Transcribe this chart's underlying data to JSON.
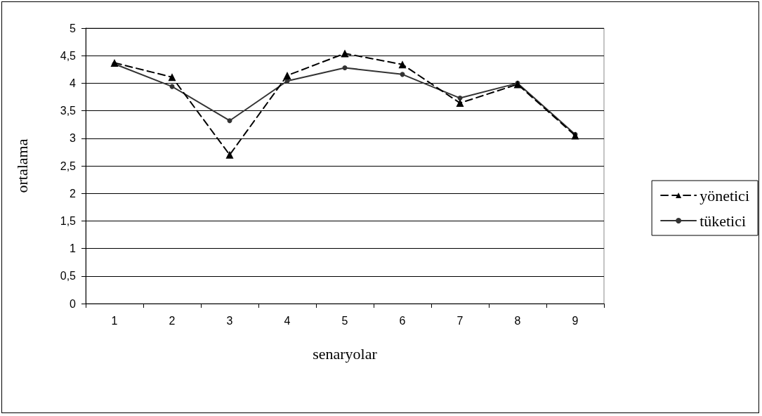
{
  "chart_data": {
    "type": "line",
    "xlabel": "senaryolar",
    "ylabel": "ortalama",
    "categories": [
      "1",
      "2",
      "3",
      "4",
      "5",
      "6",
      "7",
      "8",
      "9"
    ],
    "series": [
      {
        "name": "yönetici",
        "color": "#000000",
        "marker": "triangle",
        "line_style": "dashed",
        "values": [
          4.37,
          4.11,
          2.7,
          4.14,
          4.54,
          4.34,
          3.64,
          3.98,
          3.05
        ]
      },
      {
        "name": "tüketici",
        "color": "#333333",
        "marker": "circle",
        "line_style": "solid",
        "values": [
          4.35,
          3.94,
          3.32,
          4.04,
          4.28,
          4.16,
          3.73,
          4.0,
          3.07
        ]
      }
    ],
    "ylim": [
      0,
      5
    ],
    "yticks": [
      0,
      {
        "value": 0.5,
        "label": "0,5"
      },
      1,
      {
        "value": 1.5,
        "label": "1,5"
      },
      2,
      {
        "value": 2.5,
        "label": "2,5"
      },
      3,
      {
        "value": 3.5,
        "label": "3,5"
      },
      4,
      {
        "value": 4.5,
        "label": "4,5"
      },
      5
    ],
    "grid": "y",
    "legend": "right"
  }
}
